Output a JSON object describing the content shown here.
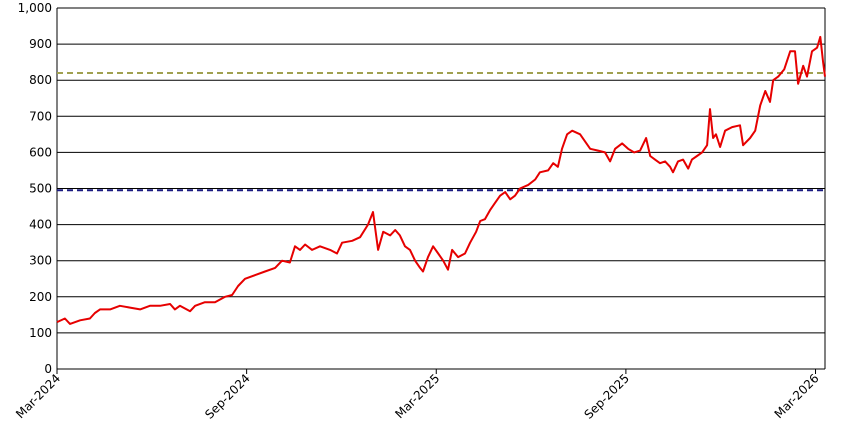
{
  "chart_data": {
    "type": "line",
    "series": [
      {
        "color": "#e60000",
        "x": [
          0,
          0.25,
          0.41,
          0.73,
          1.04,
          1.2,
          1.36,
          1.68,
          1.99,
          2.31,
          2.63,
          2.94,
          3.26,
          3.58,
          3.73,
          3.89,
          4.21,
          4.37,
          4.68,
          5.0,
          5.32,
          5.54,
          5.73,
          5.95,
          6.27,
          6.58,
          6.9,
          7.12,
          7.37,
          7.53,
          7.69,
          7.85,
          8.07,
          8.32,
          8.64,
          8.86,
          9.02,
          9.34,
          9.59,
          9.84,
          10.0,
          10.16,
          10.32,
          10.54,
          10.7,
          10.85,
          11.01,
          11.17,
          11.33,
          11.49,
          11.58,
          11.74,
          11.9,
          12.06,
          12.22,
          12.37,
          12.5,
          12.69,
          12.91,
          13.07,
          13.26,
          13.39,
          13.54,
          13.7,
          13.86,
          14.02,
          14.18,
          14.34,
          14.49,
          14.65,
          14.91,
          15.13,
          15.28,
          15.54,
          15.7,
          15.85,
          15.98,
          16.14,
          16.3,
          16.55,
          16.87,
          17.12,
          17.34,
          17.5,
          17.66,
          17.88,
          18.07,
          18.26,
          18.45,
          18.64,
          18.77,
          18.92,
          19.08,
          19.24,
          19.4,
          19.49,
          19.65,
          19.81,
          19.97,
          20.09,
          20.25,
          20.41,
          20.57,
          20.66,
          20.76,
          20.85,
          20.98,
          21.14,
          21.36,
          21.61,
          21.71,
          21.93,
          22.09,
          22.25,
          22.41,
          22.56,
          22.66,
          22.82,
          23.01,
          23.2,
          23.35,
          23.45,
          23.61,
          23.73,
          23.89,
          24.05,
          24.15,
          24.24,
          24.3
        ],
        "values": [
          130,
          140,
          125,
          135,
          140,
          155,
          165,
          165,
          175,
          170,
          165,
          175,
          175,
          180,
          165,
          175,
          160,
          175,
          185,
          185,
          200,
          205,
          230,
          250,
          260,
          270,
          280,
          300,
          295,
          340,
          330,
          345,
          330,
          340,
          330,
          320,
          350,
          355,
          365,
          400,
          435,
          330,
          380,
          370,
          385,
          370,
          340,
          330,
          300,
          280,
          270,
          310,
          340,
          320,
          300,
          275,
          330,
          310,
          320,
          350,
          380,
          410,
          415,
          440,
          460,
          480,
          490,
          470,
          480,
          500,
          510,
          525,
          545,
          550,
          570,
          560,
          610,
          650,
          660,
          650,
          610,
          605,
          600,
          575,
          610,
          625,
          610,
          600,
          605,
          640,
          590,
          580,
          570,
          575,
          560,
          545,
          575,
          580,
          555,
          580,
          590,
          600,
          620,
          720,
          640,
          650,
          615,
          660,
          670,
          675,
          620,
          640,
          660,
          730,
          770,
          740,
          800,
          810,
          830,
          880,
          880,
          790,
          840,
          810,
          880,
          890,
          920,
          850,
          810
        ]
      }
    ],
    "reference_lines": [
      {
        "value": 820,
        "color": "#a0a050"
      },
      {
        "value": 495,
        "color": "#1a1a80"
      }
    ],
    "xlim": [
      0,
      24.3
    ],
    "xticks": [
      {
        "value": 0,
        "label": "Mar-2024"
      },
      {
        "value": 6,
        "label": "Sep-2024"
      },
      {
        "value": 12,
        "label": "Mar-2025"
      },
      {
        "value": 18,
        "label": "Sep-2025"
      },
      {
        "value": 24,
        "label": "Mar-2026"
      }
    ],
    "ylim": [
      0,
      1000
    ],
    "yticks": [
      0,
      100,
      200,
      300,
      400,
      500,
      600,
      700,
      800,
      900,
      {
        "value": 1000,
        "label": "1,000"
      }
    ],
    "grid": true
  }
}
